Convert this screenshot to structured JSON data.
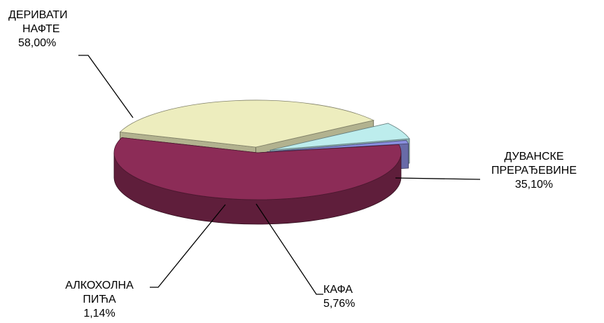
{
  "chart_data": {
    "type": "pie",
    "style": "3d-exploded",
    "legend": "none",
    "slices": [
      {
        "key": "nafta",
        "label_lines": [
          "ДЕРИВАТИ",
          "НАФТЕ"
        ],
        "value": 58.0,
        "value_label": "58,00%",
        "color": "#8C2C57"
      },
      {
        "key": "duvan",
        "label_lines": [
          "ДУВАНСКЕ",
          "ПРЕРАЂЕВИНЕ"
        ],
        "value": 35.1,
        "value_label": "35,10%",
        "color": "#EDEDBE"
      },
      {
        "key": "kafa",
        "label_lines": [
          "КАФА"
        ],
        "value": 5.76,
        "value_label": "5,76%",
        "color": "#BDEDED"
      },
      {
        "key": "alkohol",
        "label_lines": [
          "АЛКОХОЛНА",
          "ПИЋА"
        ],
        "value": 1.14,
        "value_label": "1,14%",
        "color": "#8A8FE0"
      }
    ]
  }
}
